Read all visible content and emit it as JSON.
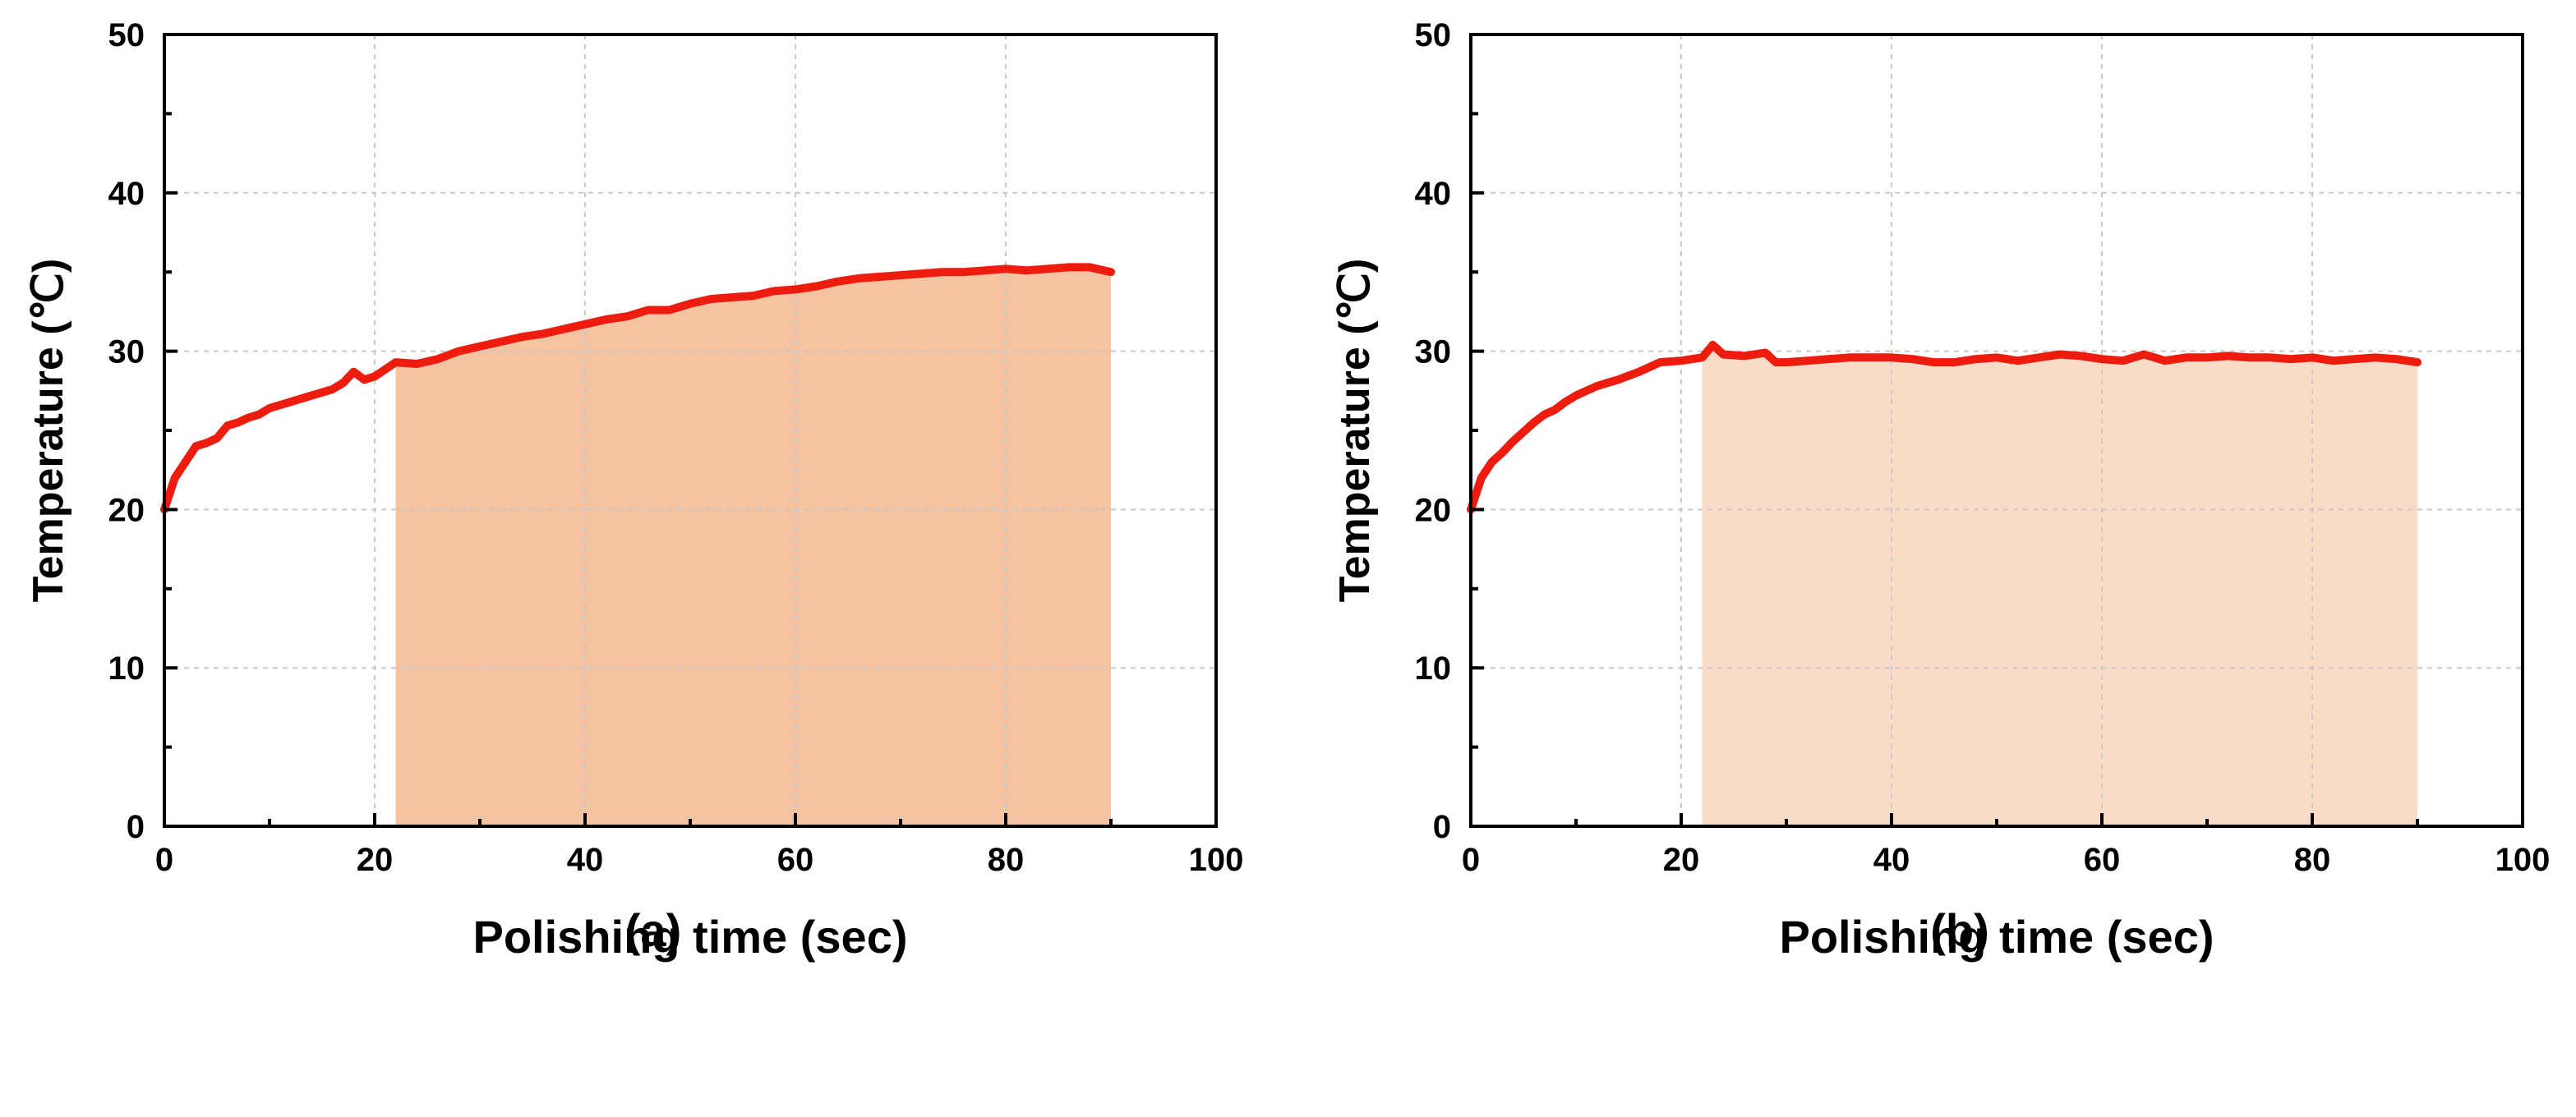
{
  "chart_data": [
    {
      "type": "area",
      "panel_label": "(a)",
      "xlabel": "Polishing time (sec)",
      "ylabel": "Temperature (℃)",
      "xlim": [
        0,
        100
      ],
      "ylim": [
        0,
        50
      ],
      "xticks": [
        "0",
        "20",
        "40",
        "60",
        "80",
        "100"
      ],
      "yticks": [
        "0",
        "10",
        "20",
        "30",
        "40",
        "50"
      ],
      "grid": true,
      "line_color": "#ee1c0e",
      "fill_color": "#f4c4a2",
      "shaded_region": {
        "x_start": 22,
        "x_end": 90
      },
      "series": [
        {
          "x": [
            0,
            1,
            2,
            3,
            4,
            5,
            6,
            7,
            8,
            9,
            10,
            12,
            14,
            16,
            17,
            18,
            19,
            20,
            22,
            24,
            26,
            28,
            30,
            32,
            34,
            36,
            38,
            40,
            42,
            44,
            46,
            48,
            50,
            52,
            54,
            56,
            58,
            60,
            62,
            64,
            66,
            68,
            70,
            72,
            74,
            76,
            78,
            80,
            82,
            84,
            86,
            88,
            90
          ],
          "y": [
            20,
            22,
            23,
            24,
            24.2,
            24.5,
            25.3,
            25.5,
            25.8,
            26,
            26.4,
            26.8,
            27.2,
            27.6,
            28,
            28.7,
            28.2,
            28.4,
            29.3,
            29.2,
            29.5,
            30,
            30.3,
            30.6,
            30.9,
            31.1,
            31.4,
            31.7,
            32,
            32.2,
            32.6,
            32.6,
            33,
            33.3,
            33.4,
            33.5,
            33.8,
            33.9,
            34.1,
            34.4,
            34.6,
            34.7,
            34.8,
            34.9,
            35,
            35,
            35.1,
            35.2,
            35.1,
            35.2,
            35.3,
            35.3,
            35
          ]
        }
      ]
    },
    {
      "type": "area",
      "panel_label": "(b)",
      "xlabel": "Polishing time (sec)",
      "ylabel": "Temperature (℃)",
      "xlim": [
        0,
        100
      ],
      "ylim": [
        0,
        50
      ],
      "xticks": [
        "0",
        "20",
        "40",
        "60",
        "80",
        "100"
      ],
      "yticks": [
        "0",
        "10",
        "20",
        "30",
        "40",
        "50"
      ],
      "grid": true,
      "line_color": "#ee1c0e",
      "fill_color": "#f9dcc8",
      "shaded_region": {
        "x_start": 22,
        "x_end": 90
      },
      "series": [
        {
          "x": [
            0,
            1,
            2,
            3,
            4,
            5,
            6,
            7,
            8,
            9,
            10,
            12,
            14,
            16,
            18,
            20,
            22,
            23,
            24,
            26,
            28,
            29,
            30,
            32,
            34,
            36,
            38,
            40,
            42,
            44,
            46,
            48,
            50,
            52,
            54,
            56,
            58,
            60,
            62,
            64,
            66,
            68,
            70,
            72,
            74,
            76,
            78,
            80,
            82,
            84,
            86,
            88,
            90
          ],
          "y": [
            20,
            22,
            23,
            23.6,
            24.3,
            24.9,
            25.5,
            26,
            26.3,
            26.8,
            27.2,
            27.8,
            28.2,
            28.7,
            29.3,
            29.4,
            29.6,
            30.4,
            29.8,
            29.7,
            29.9,
            29.3,
            29.3,
            29.4,
            29.5,
            29.6,
            29.6,
            29.6,
            29.5,
            29.3,
            29.3,
            29.5,
            29.6,
            29.4,
            29.6,
            29.8,
            29.7,
            29.5,
            29.4,
            29.8,
            29.4,
            29.6,
            29.6,
            29.7,
            29.6,
            29.6,
            29.5,
            29.6,
            29.4,
            29.5,
            29.6,
            29.5,
            29.3
          ]
        }
      ]
    }
  ]
}
